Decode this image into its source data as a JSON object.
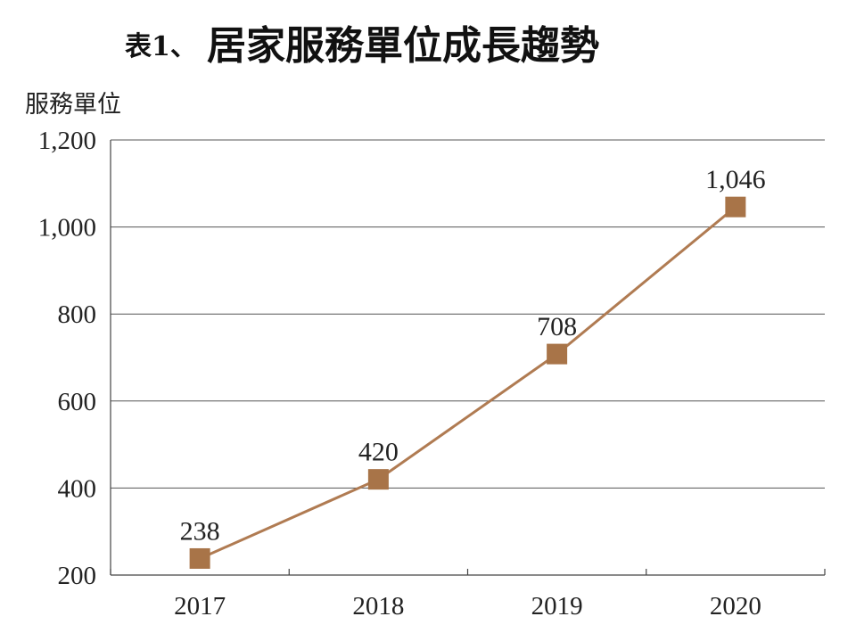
{
  "chart_data": {
    "type": "line",
    "title_prefix": "表1、",
    "title": "居家服務單位成長趨勢",
    "ylabel": "服務單位",
    "xlabel": "",
    "categories": [
      "2017",
      "2018",
      "2019",
      "2020"
    ],
    "values": [
      238,
      420,
      708,
      1046
    ],
    "value_labels": [
      "238",
      "420",
      "708",
      "1,046"
    ],
    "ylim": [
      200,
      1200
    ],
    "yticks": [
      200,
      400,
      600,
      800,
      1000,
      1200
    ],
    "ytick_labels": [
      "200",
      "400",
      "600",
      "800",
      "1,000",
      "1,200"
    ],
    "grid": true,
    "legend": "none",
    "colors": {
      "line": "#b07b52",
      "marker": "#a87448",
      "grid": "#555555",
      "text": "#222222"
    }
  }
}
